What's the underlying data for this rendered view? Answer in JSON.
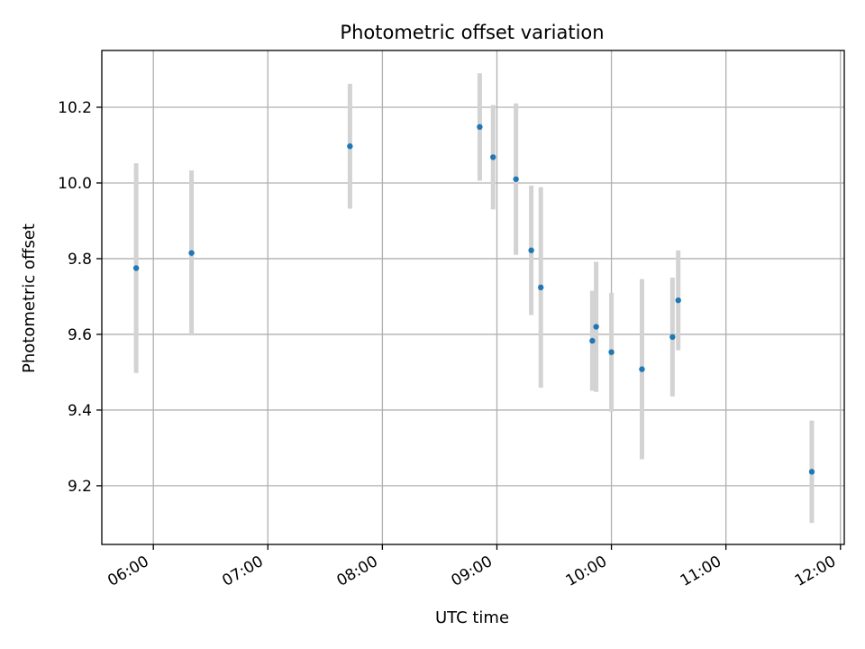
{
  "chart_data": {
    "type": "scatter",
    "title": "Photometric offset variation",
    "xlabel": "UTC time",
    "ylabel": "Photometric offset",
    "xlim": [
      "05:33",
      "12:02"
    ],
    "ylim": [
      9.045,
      10.35
    ],
    "x_ticks": [
      "06:00",
      "07:00",
      "08:00",
      "09:00",
      "10:00",
      "11:00",
      "12:00"
    ],
    "y_ticks": [
      9.2,
      9.4,
      9.6,
      9.8,
      10.0,
      10.2
    ],
    "y_tick_labels": [
      "9.2",
      "9.4",
      "9.6",
      "9.8",
      "10.0",
      "10.2"
    ],
    "grid": true,
    "colors": {
      "marker": "#1f77b4",
      "errorbar": "#d3d3d3",
      "grid": "#b0b0b0"
    },
    "points": [
      {
        "x": "05:51",
        "y": 9.775,
        "err": 0.277
      },
      {
        "x": "06:20",
        "y": 9.815,
        "err": 0.218
      },
      {
        "x": "07:43",
        "y": 10.097,
        "err": 0.165
      },
      {
        "x": "08:51",
        "y": 10.148,
        "err": 0.142
      },
      {
        "x": "08:58",
        "y": 10.068,
        "err": 0.138
      },
      {
        "x": "09:10",
        "y": 10.01,
        "err": 0.2
      },
      {
        "x": "09:18",
        "y": 9.822,
        "err": 0.171
      },
      {
        "x": "09:23",
        "y": 9.724,
        "err": 0.265
      },
      {
        "x": "09:50",
        "y": 9.583,
        "err": 0.132
      },
      {
        "x": "09:52",
        "y": 9.62,
        "err": 0.172
      },
      {
        "x": "10:00",
        "y": 9.553,
        "err": 0.157
      },
      {
        "x": "10:16",
        "y": 9.508,
        "err": 0.238
      },
      {
        "x": "10:32",
        "y": 9.593,
        "err": 0.157
      },
      {
        "x": "10:35",
        "y": 9.69,
        "err": 0.132
      },
      {
        "x": "11:45",
        "y": 9.237,
        "err": 0.135
      }
    ]
  }
}
